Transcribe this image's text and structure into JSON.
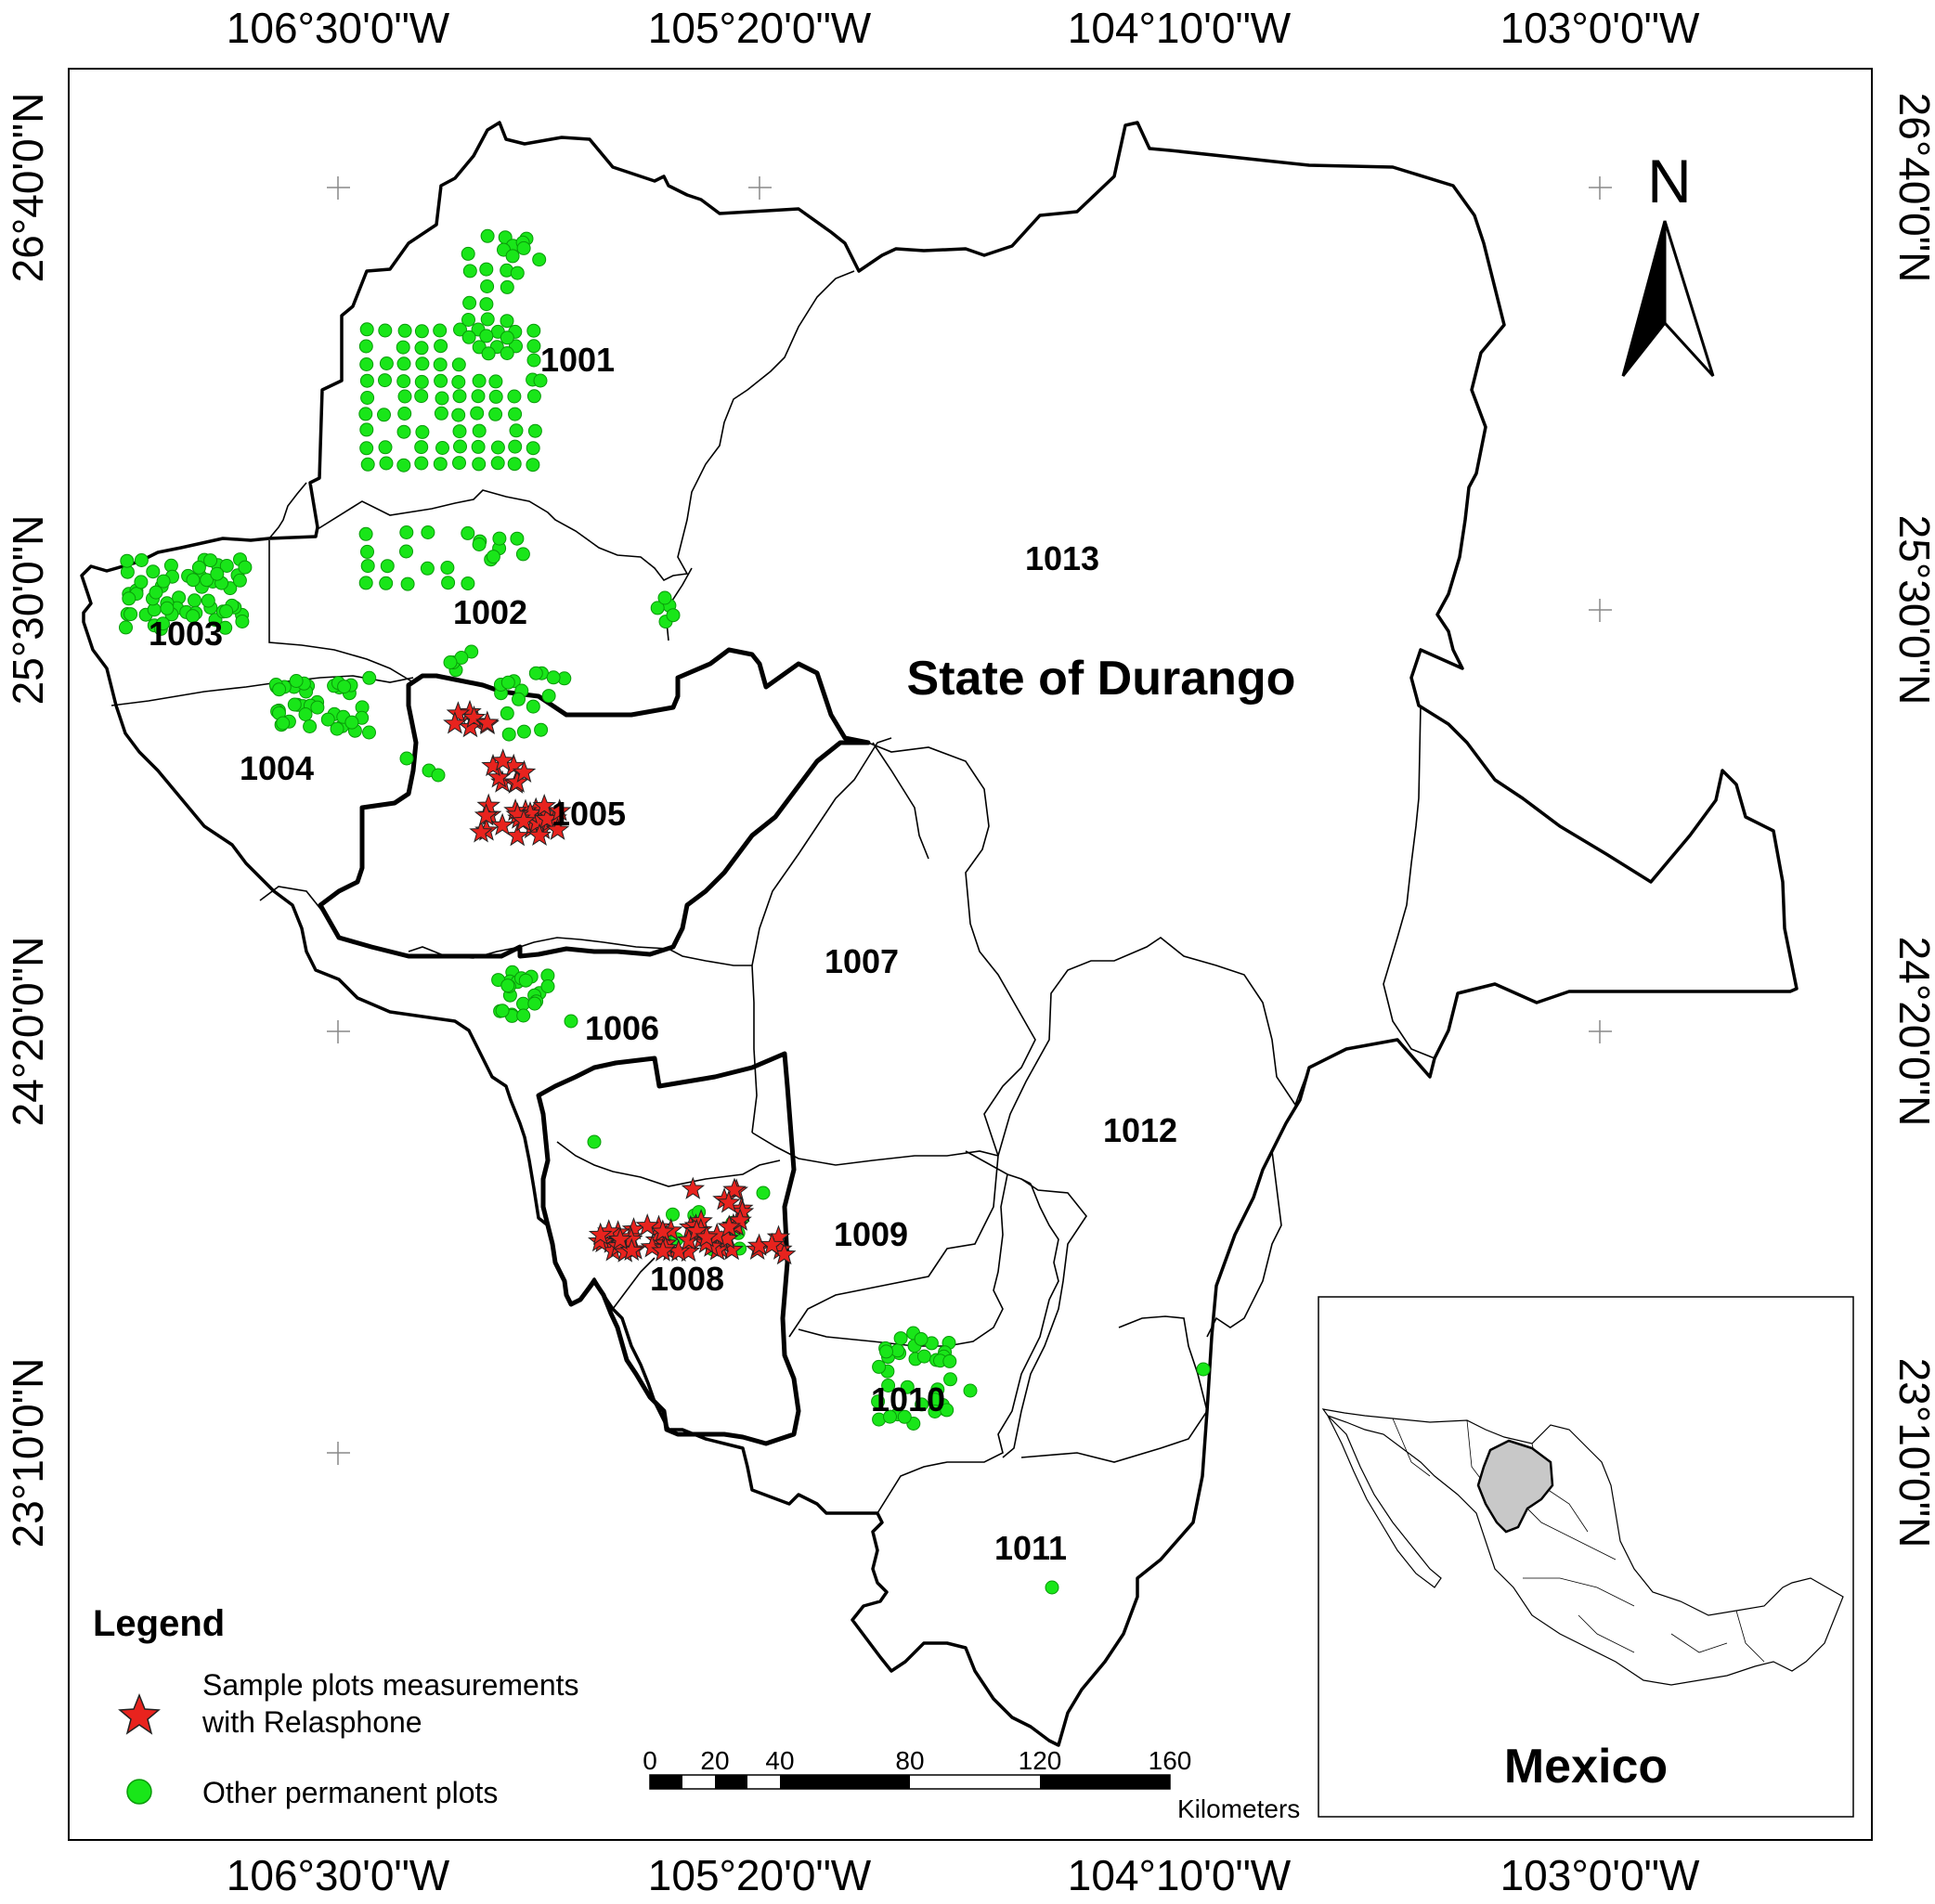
{
  "map": {
    "state_label": "State of Durango",
    "north_label": "N",
    "longitude_labels": [
      "106°30'0\"W",
      "105°20'0\"W",
      "104°10'0\"W",
      "103°0'0\"W"
    ],
    "latitude_labels": [
      "26°40'0\"N",
      "25°30'0\"N",
      "24°20'0\"N",
      "23°10'0\"N"
    ],
    "districts": [
      {
        "id": "1001",
        "label": "1001"
      },
      {
        "id": "1002",
        "label": "1002"
      },
      {
        "id": "1003",
        "label": "1003"
      },
      {
        "id": "1004",
        "label": "1004"
      },
      {
        "id": "1005",
        "label": "1005"
      },
      {
        "id": "1006",
        "label": "1006"
      },
      {
        "id": "1007",
        "label": "1007"
      },
      {
        "id": "1008",
        "label": "1008"
      },
      {
        "id": "1009",
        "label": "1009"
      },
      {
        "id": "1010",
        "label": "1010"
      },
      {
        "id": "1011",
        "label": "1011"
      },
      {
        "id": "1012",
        "label": "1012"
      },
      {
        "id": "1013",
        "label": "1013"
      }
    ]
  },
  "legend": {
    "title": "Legend",
    "items": [
      {
        "label_line1": "Sample plots measurements",
        "label_line2": "with Relasphone",
        "symbol": "star",
        "color": "#e8231e"
      },
      {
        "label_line1": "Other permanent plots",
        "label_line2": "",
        "symbol": "circle",
        "color": "#19e619"
      }
    ]
  },
  "scale_bar": {
    "ticks": [
      "0",
      "20",
      "40",
      "80",
      "120",
      "160"
    ],
    "unit": "Kilometers"
  },
  "inset": {
    "label": "Mexico",
    "highlight_color": "#c8c8c8"
  }
}
